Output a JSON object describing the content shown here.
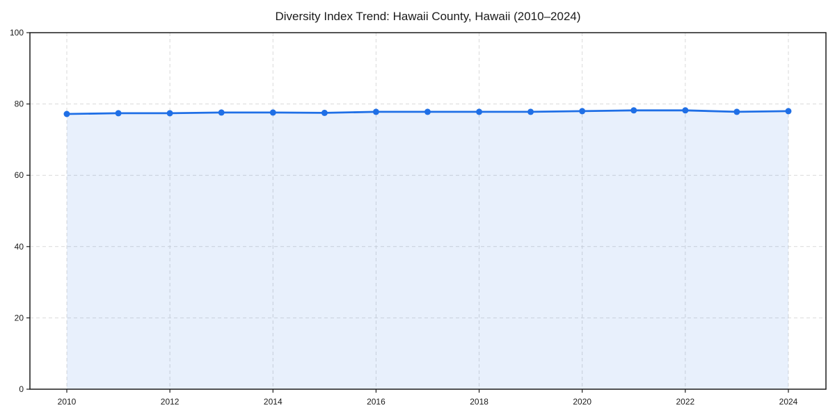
{
  "page": {
    "background": "#ffffff"
  },
  "chart_data": {
    "type": "area",
    "title": "Diversity Index Trend: Hawaii County, Hawaii (2010–2024)",
    "x": [
      2010,
      2011,
      2012,
      2013,
      2014,
      2015,
      2016,
      2017,
      2018,
      2019,
      2020,
      2021,
      2022,
      2023,
      2024
    ],
    "values": [
      77.2,
      77.4,
      77.4,
      77.6,
      77.6,
      77.5,
      77.8,
      77.8,
      77.8,
      77.8,
      78.0,
      78.2,
      78.2,
      77.8,
      78.0
    ],
    "xlabel": "",
    "ylabel": "",
    "ylim": [
      0,
      100
    ],
    "xticks": [
      2010,
      2012,
      2014,
      2016,
      2018,
      2020,
      2022,
      2024
    ],
    "yticks": [
      0,
      20,
      40,
      60,
      80,
      100
    ],
    "grid": true,
    "grid_style": "dashed",
    "legend": false,
    "marker": "circle",
    "colors": {
      "line": "#1f6fe6",
      "area": "#1f6fe6",
      "grid": "#d9d9d9",
      "axis": "#1a1a1a",
      "text": "#1a1a1a"
    }
  }
}
